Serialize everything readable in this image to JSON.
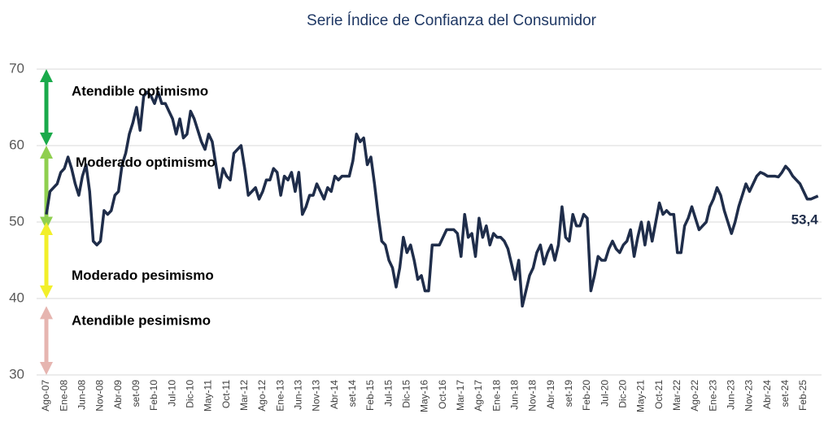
{
  "chart_data": {
    "type": "line",
    "title": "Serie Índice de Confianza del Consumidor",
    "categories": [
      "Ago-07",
      null,
      null,
      null,
      null,
      "Ene-08",
      null,
      null,
      null,
      null,
      "Jun-08",
      null,
      null,
      null,
      null,
      "Nov-08",
      null,
      null,
      null,
      null,
      "Abr-09",
      null,
      null,
      null,
      null,
      "set-09",
      null,
      null,
      null,
      null,
      "Feb-10",
      null,
      null,
      null,
      null,
      "Jul-10",
      null,
      null,
      null,
      null,
      "Dic-10",
      null,
      null,
      null,
      null,
      "May-11",
      null,
      null,
      null,
      null,
      "Oct-11",
      null,
      null,
      null,
      null,
      "Mar-12",
      null,
      null,
      null,
      null,
      "Ago-12",
      null,
      null,
      null,
      null,
      "Ene-13",
      null,
      null,
      null,
      null,
      "Jun-13",
      null,
      null,
      null,
      null,
      "Nov-13",
      null,
      null,
      null,
      null,
      "Abr-14",
      null,
      null,
      null,
      null,
      "set-14",
      null,
      null,
      null,
      null,
      "Feb-15",
      null,
      null,
      null,
      null,
      "Jul-15",
      null,
      null,
      null,
      null,
      "Dic-15",
      null,
      null,
      null,
      null,
      "May-16",
      null,
      null,
      null,
      null,
      "Oct-16",
      null,
      null,
      null,
      null,
      "Mar-17",
      null,
      null,
      null,
      null,
      "Ago-17",
      null,
      null,
      null,
      null,
      "Ene-18",
      null,
      null,
      null,
      null,
      "Jun-18",
      null,
      null,
      null,
      null,
      "Nov-18",
      null,
      null,
      null,
      null,
      "Abr-19",
      null,
      null,
      null,
      null,
      "set-19",
      null,
      null,
      null,
      null,
      "Feb-20",
      null,
      null,
      null,
      null,
      "Jul-20",
      null,
      null,
      null,
      null,
      "Dic-20",
      null,
      null,
      null,
      null,
      "May-21",
      null,
      null,
      null,
      null,
      "Oct-21",
      null,
      null,
      null,
      null,
      "Mar-22",
      null,
      null,
      null,
      null,
      "Ago-22",
      null,
      null,
      null,
      null,
      "Ene-23",
      null,
      null,
      null,
      null,
      "Jun-23",
      null,
      null,
      null,
      null,
      "Nov-23",
      null,
      null,
      null,
      null,
      "Abr-24",
      null,
      null,
      null,
      null,
      "set-24",
      null,
      null,
      null,
      null,
      "Feb-25",
      null,
      null,
      null,
      null
    ],
    "series": [
      {
        "name": "Índice de Confianza del Consumidor",
        "color": "#1f2d4a",
        "values": [
          51,
          54,
          54.5,
          55,
          56.5,
          57,
          58.5,
          57,
          55,
          53.5,
          56,
          57.5,
          54,
          47.5,
          47,
          47.5,
          51.5,
          51,
          51.5,
          53.5,
          54,
          57.5,
          59,
          61.5,
          63,
          65,
          62,
          66.5,
          67,
          66.5,
          65.5,
          67,
          65.5,
          65.5,
          64.5,
          63.5,
          61.5,
          63.5,
          61,
          61.5,
          64.5,
          63.5,
          62,
          60.5,
          59.5,
          61.5,
          60.5,
          57.5,
          54.5,
          57,
          56,
          55.5,
          59,
          59.5,
          60,
          57,
          53.5,
          54,
          54.5,
          53,
          54,
          55.5,
          55.5,
          57,
          56.5,
          53.5,
          56,
          55.5,
          56.5,
          54,
          56.5,
          51,
          52,
          53.5,
          53.5,
          55,
          54,
          53,
          54.5,
          54,
          56,
          55.5,
          56,
          56,
          56,
          58,
          61.5,
          60.5,
          61,
          57.5,
          58.5,
          55,
          51,
          47.5,
          47,
          45,
          44,
          41.5,
          44,
          48,
          46,
          47,
          45,
          42.5,
          43,
          41,
          41,
          47,
          47,
          47,
          48,
          49,
          49,
          49,
          48.5,
          45.5,
          51,
          48,
          48.5,
          45.5,
          50.5,
          48,
          49.5,
          47,
          48.5,
          48,
          48,
          47.5,
          46.5,
          44.5,
          42.5,
          45,
          39,
          41,
          43,
          44,
          46,
          47,
          44.5,
          46,
          47,
          45,
          47,
          52,
          48,
          47.5,
          51,
          49.5,
          49.5,
          51,
          50.5,
          41,
          43,
          45.5,
          45,
          45,
          46.5,
          47.5,
          46.5,
          46,
          47,
          47.5,
          49,
          45.5,
          48,
          50,
          47,
          50,
          47.5,
          50,
          52.5,
          51,
          51.5,
          51,
          51,
          46,
          46,
          49.5,
          50.5,
          52,
          50.5,
          49,
          49.5,
          50,
          52,
          53,
          54.5,
          53.5,
          51.5,
          50,
          48.5,
          50,
          52,
          53.5,
          55,
          54,
          55,
          56,
          56.5,
          56.3,
          56,
          56,
          56,
          55.9,
          56.5,
          57.3,
          56.8,
          56,
          55.5,
          55,
          54,
          53,
          53,
          53.2,
          53.4
        ],
        "value_labels": [
          null,
          null,
          null,
          null,
          null,
          null,
          null,
          null,
          null,
          null,
          null,
          null,
          null,
          null,
          null,
          null,
          null,
          null,
          null,
          null,
          null,
          null,
          null,
          null,
          null,
          null,
          null,
          null,
          null,
          null,
          null,
          null,
          null,
          null,
          null,
          null,
          null,
          null,
          null,
          null,
          null,
          null,
          null,
          null,
          null,
          null,
          null,
          null,
          null,
          null,
          null,
          null,
          null,
          null,
          null,
          null,
          null,
          null,
          null,
          null,
          null,
          null,
          null,
          null,
          null,
          null,
          null,
          null,
          null,
          null,
          null,
          null,
          null,
          null,
          null,
          null,
          null,
          null,
          null,
          null,
          null,
          null,
          null,
          null,
          null,
          null,
          null,
          null,
          null,
          null,
          null,
          null,
          null,
          null,
          null,
          null,
          null,
          null,
          null,
          null,
          null,
          null,
          null,
          null,
          null,
          null,
          null,
          null,
          null,
          null,
          null,
          null,
          null,
          null,
          null,
          null,
          null,
          null,
          null,
          null,
          null,
          null,
          null,
          null,
          null,
          null,
          null,
          null,
          null,
          null,
          null,
          null,
          null,
          null,
          null,
          null,
          null,
          null,
          null,
          null,
          null,
          null,
          null,
          null,
          null,
          null,
          null,
          null,
          null,
          null,
          null,
          null,
          null,
          null,
          null,
          null,
          null,
          null,
          null,
          null,
          null,
          null,
          null,
          null,
          null,
          null,
          null,
          null,
          null,
          null,
          null,
          null,
          null,
          null,
          null,
          null,
          null,
          null,
          null,
          null,
          null,
          null,
          null,
          null,
          null,
          null,
          null,
          null,
          null,
          null,
          null,
          null,
          null,
          null,
          null,
          null,
          null,
          null,
          null,
          null,
          null,
          null,
          null,
          null,
          null,
          null,
          null,
          null,
          null,
          null,
          null,
          null,
          null,
          null,
          "53,4"
        ]
      }
    ],
    "ylim": [
      30,
      70
    ],
    "yticks": [
      30,
      40,
      50,
      60,
      70
    ],
    "grid": true,
    "zones": [
      {
        "label": "Atendible optimismo",
        "range": [
          60,
          70
        ],
        "color": "#1aaa4b"
      },
      {
        "label": "Moderado optimismo",
        "range": [
          49,
          60
        ],
        "color": "#8fcf4f"
      },
      {
        "label": "Moderado pesimismo",
        "range": [
          40,
          50
        ],
        "color": "#f2ef2a"
      },
      {
        "label": "Atendible pesimismo",
        "range": [
          30,
          39
        ],
        "color": "#e6b5b0"
      }
    ]
  }
}
